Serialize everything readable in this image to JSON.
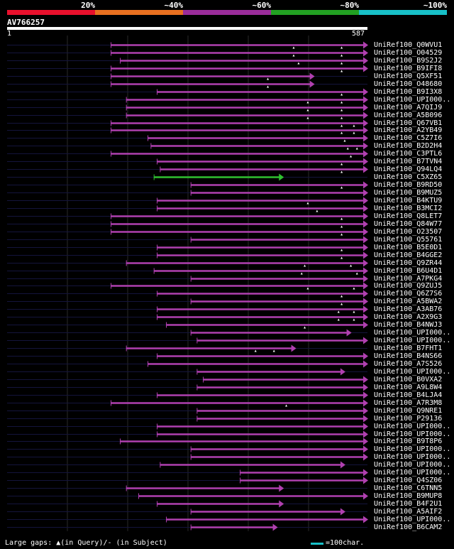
{
  "colors": {
    "low": "#e8102c",
    "mid_low": "#e87020",
    "mid": "#9a2c9a",
    "mid_high": "#22a022",
    "high": "#18c0c8",
    "hit": "#b040b0",
    "hit_green": "#30c030",
    "track": "#14143c"
  },
  "legend": {
    "labels": [
      "20%",
      "~40%",
      "~60%",
      "~80%",
      "~100%"
    ]
  },
  "query": {
    "id": "AV766257",
    "start": "1",
    "end": "587",
    "length": 587
  },
  "footer": {
    "note": "Large gaps: ▲(in Query)/- (in Subject)",
    "scale": "=100char."
  },
  "hits": [
    {
      "name": "UniRef100_Q0WVU1",
      "start": 170,
      "end": 587,
      "gaps": [
        467,
        545
      ],
      "green": false
    },
    {
      "name": "UniRef100_O04529",
      "start": 170,
      "end": 587,
      "gaps": [
        467,
        545
      ],
      "green": false
    },
    {
      "name": "UniRef100_B9S2J2",
      "start": 185,
      "end": 587,
      "gaps": [
        475,
        545
      ],
      "green": false
    },
    {
      "name": "UniRef100_B9IFI8",
      "start": 170,
      "end": 587,
      "gaps": [
        545
      ],
      "green": false
    },
    {
      "name": "UniRef100_Q5XF51",
      "start": 170,
      "end": 500,
      "gaps": [
        425
      ],
      "green": false
    },
    {
      "name": "UniRef100_O48680",
      "start": 170,
      "end": 500,
      "gaps": [
        425
      ],
      "green": false
    },
    {
      "name": "UniRef100_B9I3X8",
      "start": 245,
      "end": 587,
      "gaps": [
        545
      ],
      "green": false
    },
    {
      "name": "UniRef100_UPI000..",
      "start": 195,
      "end": 587,
      "gaps": [
        490,
        545
      ],
      "green": false
    },
    {
      "name": "UniRef100_A7QIJ9",
      "start": 195,
      "end": 587,
      "gaps": [
        490,
        545
      ],
      "green": false
    },
    {
      "name": "UniRef100_A5B096",
      "start": 195,
      "end": 587,
      "gaps": [
        490,
        545
      ],
      "green": false
    },
    {
      "name": "UniRef100_Q67VB1",
      "start": 170,
      "end": 587,
      "gaps": [
        545,
        565
      ],
      "green": false
    },
    {
      "name": "UniRef100_A2YB49",
      "start": 170,
      "end": 587,
      "gaps": [
        545,
        565
      ],
      "green": false
    },
    {
      "name": "UniRef100_C5Z7I6",
      "start": 230,
      "end": 587,
      "gaps": [
        550
      ],
      "green": false
    },
    {
      "name": "UniRef100_B2D2H4",
      "start": 235,
      "end": 587,
      "gaps": [
        555,
        570
      ],
      "green": false
    },
    {
      "name": "UniRef100_C3PTL6",
      "start": 170,
      "end": 587,
      "gaps": [
        560
      ],
      "green": false
    },
    {
      "name": "UniRef100_B7TVN4",
      "start": 245,
      "end": 587,
      "gaps": [
        545
      ],
      "green": false
    },
    {
      "name": "UniRef100_Q94LQ4",
      "start": 250,
      "end": 587,
      "gaps": [
        545
      ],
      "green": false
    },
    {
      "name": "UniRef100_C5XZ65",
      "start": 240,
      "end": 450,
      "gaps": [],
      "green": true
    },
    {
      "name": "UniRef100_B9RD50",
      "start": 300,
      "end": 587,
      "gaps": [
        545
      ],
      "green": false
    },
    {
      "name": "UniRef100_B9MUZ5",
      "start": 300,
      "end": 587,
      "gaps": [],
      "green": false
    },
    {
      "name": "UniRef100_B4KTU9",
      "start": 245,
      "end": 587,
      "gaps": [
        490
      ],
      "green": false
    },
    {
      "name": "UniRef100_B3MCI2",
      "start": 245,
      "end": 587,
      "gaps": [
        505
      ],
      "green": false
    },
    {
      "name": "UniRef100_Q8LET7",
      "start": 170,
      "end": 587,
      "gaps": [
        545
      ],
      "green": false
    },
    {
      "name": "UniRef100_Q84W77",
      "start": 170,
      "end": 587,
      "gaps": [
        545
      ],
      "green": false
    },
    {
      "name": "UniRef100_O23507",
      "start": 170,
      "end": 587,
      "gaps": [
        545
      ],
      "green": false
    },
    {
      "name": "UniRef100_Q55761",
      "start": 300,
      "end": 587,
      "gaps": [],
      "green": false
    },
    {
      "name": "UniRef100_B5E0D1",
      "start": 245,
      "end": 587,
      "gaps": [
        545
      ],
      "green": false
    },
    {
      "name": "UniRef100_B4GGE2",
      "start": 245,
      "end": 587,
      "gaps": [
        545
      ],
      "green": false
    },
    {
      "name": "UniRef100_Q9ZR44",
      "start": 195,
      "end": 587,
      "gaps": [
        485,
        560
      ],
      "green": false
    },
    {
      "name": "UniRef100_B6U4D1",
      "start": 240,
      "end": 587,
      "gaps": [
        480,
        570
      ],
      "green": false
    },
    {
      "name": "UniRef100_A7PKG4",
      "start": 300,
      "end": 587,
      "gaps": [],
      "green": false
    },
    {
      "name": "UniRef100_Q9ZUJ5",
      "start": 170,
      "end": 587,
      "gaps": [
        490,
        565
      ],
      "green": false
    },
    {
      "name": "UniRef100_Q6Z7S6",
      "start": 245,
      "end": 587,
      "gaps": [
        545
      ],
      "green": false
    },
    {
      "name": "UniRef100_A5BWA2",
      "start": 300,
      "end": 587,
      "gaps": [
        545
      ],
      "green": false
    },
    {
      "name": "UniRef100_A3AB76",
      "start": 245,
      "end": 587,
      "gaps": [
        540,
        565
      ],
      "green": false
    },
    {
      "name": "UniRef100_A2X9G3",
      "start": 245,
      "end": 587,
      "gaps": [
        540,
        565
      ],
      "green": false
    },
    {
      "name": "UniRef100_B4NWJ3",
      "start": 260,
      "end": 587,
      "gaps": [
        485
      ],
      "green": false
    },
    {
      "name": "UniRef100_UPI000..",
      "start": 300,
      "end": 560,
      "gaps": [],
      "green": false
    },
    {
      "name": "UniRef100_UPI000..",
      "start": 310,
      "end": 587,
      "gaps": [],
      "green": false
    },
    {
      "name": "UniRef100_B7FHT1",
      "start": 195,
      "end": 470,
      "gaps": [
        405,
        435
      ],
      "green": false
    },
    {
      "name": "UniRef100_B4NS66",
      "start": 245,
      "end": 587,
      "gaps": [],
      "green": false
    },
    {
      "name": "UniRef100_A7S526",
      "start": 230,
      "end": 587,
      "gaps": [],
      "green": false
    },
    {
      "name": "UniRef100_UPI000..",
      "start": 310,
      "end": 550,
      "gaps": [],
      "green": false
    },
    {
      "name": "UniRef100_B0VXA2",
      "start": 320,
      "end": 587,
      "gaps": [],
      "green": false
    },
    {
      "name": "UniRef100_A9L8W4",
      "start": 310,
      "end": 587,
      "gaps": [],
      "green": false
    },
    {
      "name": "UniRef100_B4LJA4",
      "start": 245,
      "end": 587,
      "gaps": [],
      "green": false
    },
    {
      "name": "UniRef100_A7R3M8",
      "start": 170,
      "end": 587,
      "gaps": [
        455
      ],
      "green": false
    },
    {
      "name": "UniRef100_Q9NRE1",
      "start": 310,
      "end": 587,
      "gaps": [],
      "green": false
    },
    {
      "name": "UniRef100_P29136",
      "start": 310,
      "end": 587,
      "gaps": [],
      "green": false
    },
    {
      "name": "UniRef100_UPI000..",
      "start": 245,
      "end": 587,
      "gaps": [],
      "green": false
    },
    {
      "name": "UniRef100_UPI000..",
      "start": 245,
      "end": 587,
      "gaps": [],
      "green": false
    },
    {
      "name": "UniRef100_B9T8P6",
      "start": 185,
      "end": 587,
      "gaps": [],
      "green": false
    },
    {
      "name": "UniRef100_UPI000..",
      "start": 300,
      "end": 587,
      "gaps": [],
      "green": false
    },
    {
      "name": "UniRef100_UPI000..",
      "start": 300,
      "end": 587,
      "gaps": [],
      "green": false
    },
    {
      "name": "UniRef100_UPI000..",
      "start": 250,
      "end": 550,
      "gaps": [],
      "green": false
    },
    {
      "name": "UniRef100_UPI000..",
      "start": 380,
      "end": 587,
      "gaps": [],
      "green": false
    },
    {
      "name": "UniRef100_Q4SZ06",
      "start": 380,
      "end": 587,
      "gaps": [],
      "green": false
    },
    {
      "name": "UniRef100_C6TNN5",
      "start": 195,
      "end": 450,
      "gaps": [],
      "green": false
    },
    {
      "name": "UniRef100_B9MUP8",
      "start": 215,
      "end": 587,
      "gaps": [],
      "green": false
    },
    {
      "name": "UniRef100_B4F2U1",
      "start": 245,
      "end": 450,
      "gaps": [],
      "green": false
    },
    {
      "name": "UniRef100_A5AIF2",
      "start": 300,
      "end": 550,
      "gaps": [],
      "green": false
    },
    {
      "name": "UniRef100_UPI000..",
      "start": 260,
      "end": 587,
      "gaps": [],
      "green": false
    },
    {
      "name": "UniRef100_B6CAM2",
      "start": 300,
      "end": 440,
      "gaps": [],
      "green": false
    }
  ]
}
